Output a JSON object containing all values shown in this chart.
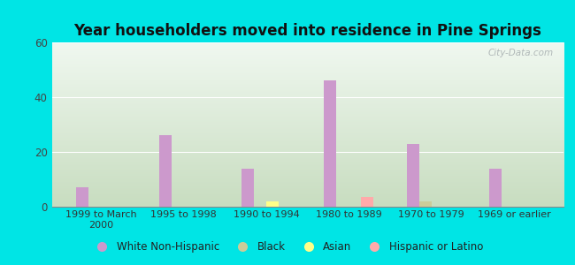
{
  "title": "Year householders moved into residence in Pine Springs",
  "categories": [
    "1999 to March\n2000",
    "1995 to 1998",
    "1990 to 1994",
    "1980 to 1989",
    "1970 to 1979",
    "1969 or earlier"
  ],
  "white_non_hispanic": [
    7,
    26,
    14,
    46,
    23,
    14
  ],
  "black": [
    0,
    0,
    0,
    0,
    2,
    0
  ],
  "asian": [
    0,
    0,
    2,
    0,
    0,
    0
  ],
  "hispanic_or_latino": [
    0,
    0,
    0,
    3.5,
    0,
    0
  ],
  "colors": {
    "white_non_hispanic": "#cc99cc",
    "black": "#cccc99",
    "asian": "#ffff88",
    "hispanic_or_latino": "#ffaaaa"
  },
  "legend_labels": [
    "White Non-Hispanic",
    "Black",
    "Asian",
    "Hispanic or Latino"
  ],
  "legend_colors": [
    "#cc99cc",
    "#cccc99",
    "#ffff88",
    "#ffaaaa"
  ],
  "ylim": [
    0,
    60
  ],
  "yticks": [
    0,
    20,
    40,
    60
  ],
  "background_outer": "#00e5e5",
  "background_inner_top": "#f0f8f0",
  "background_inner_bottom": "#c8ddc0",
  "bar_width": 0.15,
  "watermark": "City-Data.com"
}
